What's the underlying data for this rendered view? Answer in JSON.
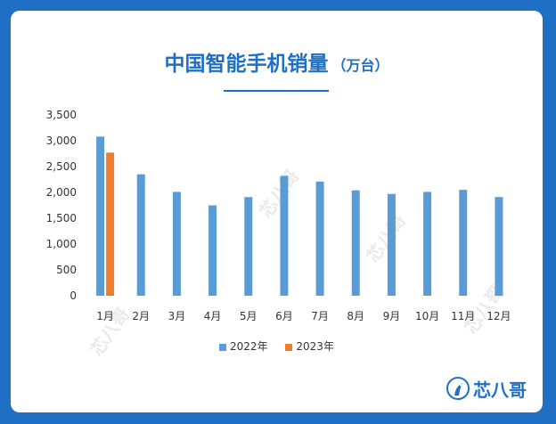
{
  "title": "中国智能手机销量",
  "unit": "（万台）",
  "brand": "芯八哥",
  "watermark": "芯八哥",
  "colors": {
    "2022年": "#5b9bd5",
    "2023年": "#ed7d31",
    "frame": "#1f6fc4"
  },
  "chart_data": {
    "type": "bar",
    "categories": [
      "1月",
      "2月",
      "3月",
      "4月",
      "5月",
      "6月",
      "7月",
      "8月",
      "9月",
      "10月",
      "11月",
      "12月"
    ],
    "series": [
      {
        "name": "2022年",
        "values": [
          3080,
          2350,
          2010,
          1750,
          1910,
          2320,
          2210,
          2040,
          1970,
          2010,
          2050,
          1910
        ]
      },
      {
        "name": "2023年",
        "values": [
          2770,
          null,
          null,
          null,
          null,
          null,
          null,
          null,
          null,
          null,
          null,
          null
        ]
      }
    ],
    "ylim": [
      0,
      3500
    ],
    "yticks": [
      "0",
      "500",
      "1,000",
      "1,500",
      "2,000",
      "2,500",
      "3,000",
      "3,500"
    ],
    "legend": "bottom",
    "grid": false
  }
}
